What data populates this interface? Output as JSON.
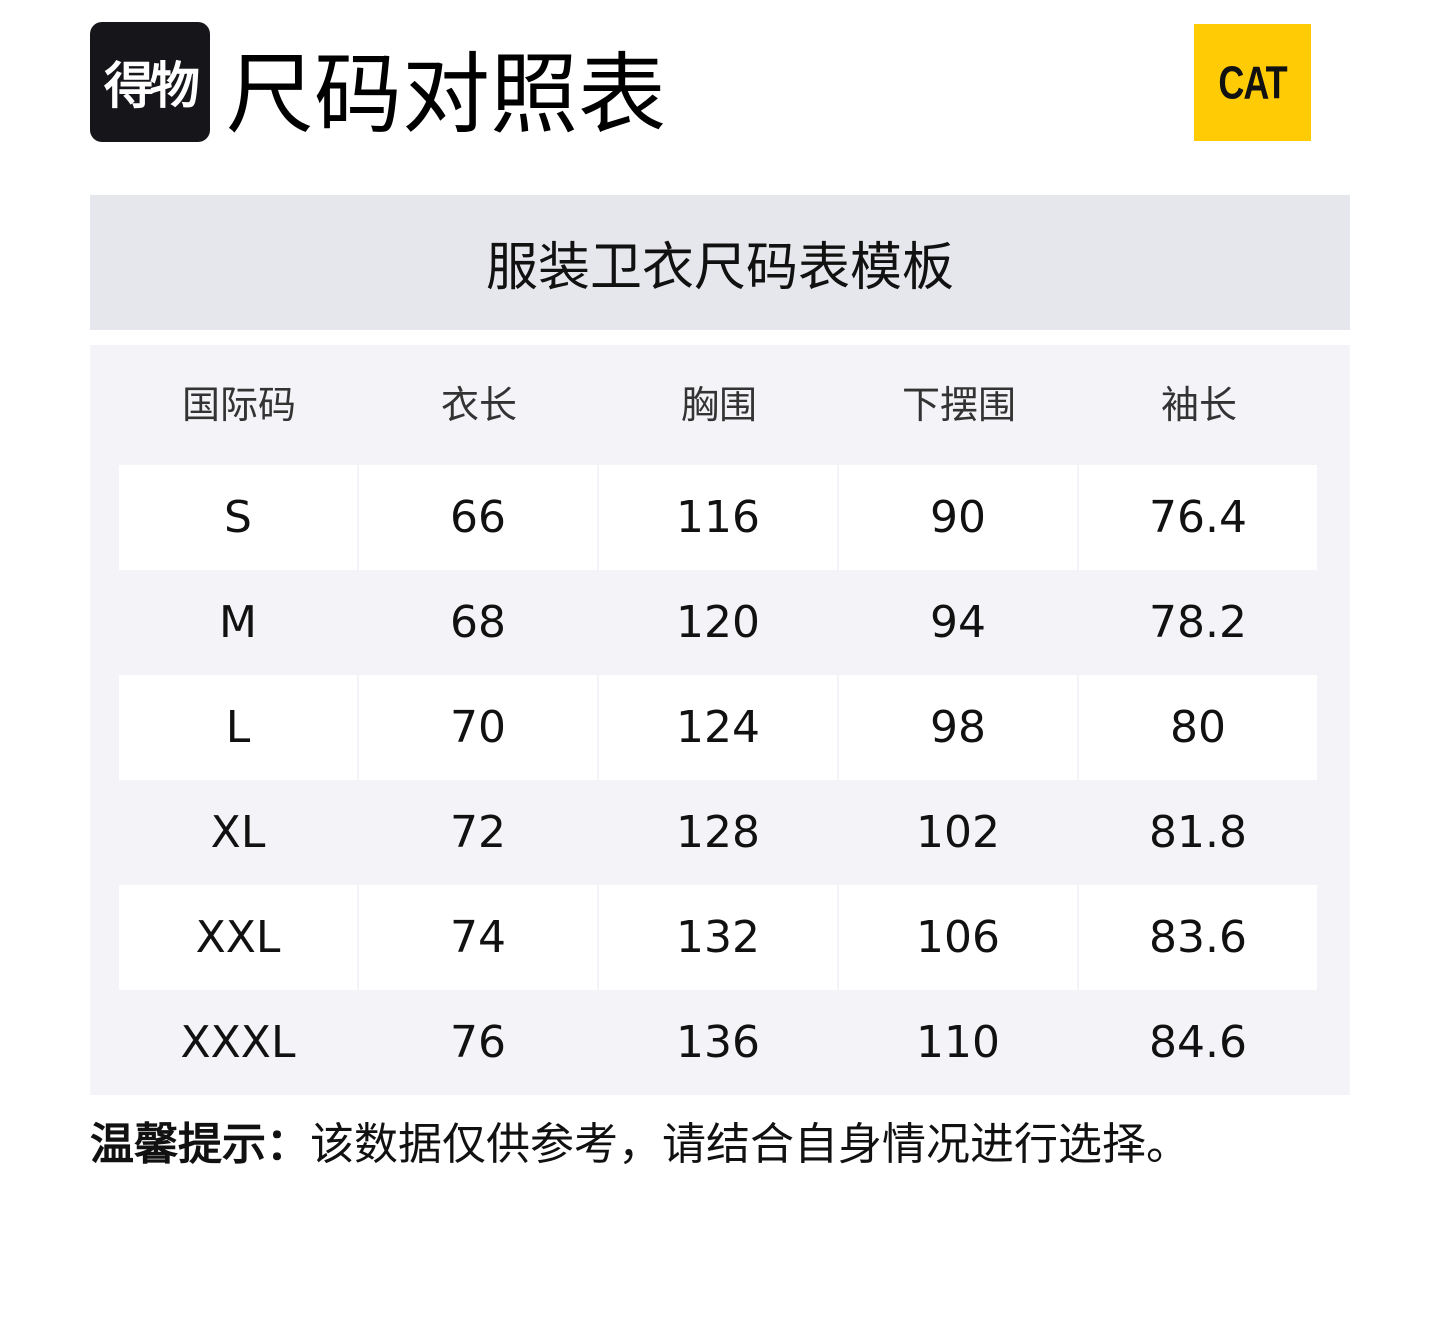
{
  "header": {
    "logo_text": "得物",
    "title": "尺码对照表",
    "brand_logo_text": "CAT",
    "brand_color": "#ffcb05"
  },
  "table": {
    "caption": "服装卫衣尺码表模板",
    "columns": [
      "国际码",
      "衣长",
      "胸围",
      "下摆围",
      "袖长"
    ],
    "rows": [
      [
        "S",
        "66",
        "116",
        "90",
        "76.4"
      ],
      [
        "M",
        "68",
        "120",
        "94",
        "78.2"
      ],
      [
        "L",
        "70",
        "124",
        "98",
        "80"
      ],
      [
        "XL",
        "72",
        "128",
        "102",
        "81.8"
      ],
      [
        "XXL",
        "74",
        "132",
        "106",
        "83.6"
      ],
      [
        "XXXL",
        "76",
        "136",
        "110",
        "84.6"
      ]
    ]
  },
  "note": {
    "label": "温馨提示：",
    "text": "该数据仅供参考，请结合自身情况进行选择。"
  }
}
